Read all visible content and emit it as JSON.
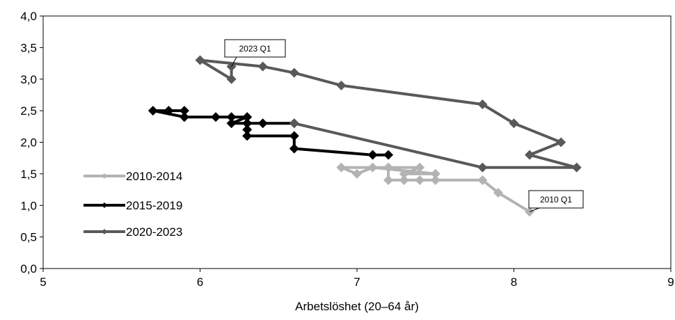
{
  "chart_data": {
    "type": "line",
    "title": "",
    "xlabel": "Arbetslöshet (20–64 år)",
    "ylabel": "",
    "xlim": [
      5,
      9
    ],
    "ylim": [
      0,
      4
    ],
    "x_ticks": [
      5,
      6,
      7,
      8,
      9
    ],
    "y_ticks": [
      "0,0",
      "0,5",
      "1,0",
      "1,5",
      "2,0",
      "2,5",
      "3,0",
      "3,5",
      "4,0"
    ],
    "grid": false,
    "legend_position": "left",
    "series": [
      {
        "name": "2010-2014",
        "color": "#b3b3b3",
        "points": [
          [
            8.1,
            0.9
          ],
          [
            7.9,
            1.2
          ],
          [
            7.8,
            1.4
          ],
          [
            7.5,
            1.4
          ],
          [
            7.4,
            1.4
          ],
          [
            7.3,
            1.4
          ],
          [
            7.2,
            1.4
          ],
          [
            7.2,
            1.6
          ],
          [
            7.4,
            1.6
          ],
          [
            7.3,
            1.5
          ],
          [
            7.5,
            1.5
          ],
          [
            7.1,
            1.6
          ],
          [
            7.0,
            1.5
          ],
          [
            6.9,
            1.6
          ],
          [
            7.2,
            1.6
          ]
        ]
      },
      {
        "name": "2015-2019",
        "color": "#000000",
        "points": [
          [
            7.2,
            1.8
          ],
          [
            7.1,
            1.8
          ],
          [
            6.6,
            1.9
          ],
          [
            6.6,
            2.1
          ],
          [
            6.3,
            2.1
          ],
          [
            6.3,
            2.2
          ],
          [
            6.3,
            2.3
          ],
          [
            6.4,
            2.3
          ],
          [
            6.2,
            2.3
          ],
          [
            6.3,
            2.4
          ],
          [
            6.1,
            2.4
          ],
          [
            5.9,
            2.4
          ],
          [
            5.9,
            2.5
          ],
          [
            5.8,
            2.5
          ],
          [
            5.7,
            2.5
          ],
          [
            5.9,
            2.4
          ],
          [
            6.2,
            2.4
          ],
          [
            6.3,
            2.4
          ],
          [
            6.3,
            2.3
          ],
          [
            6.6,
            2.3
          ]
        ]
      },
      {
        "name": "2020-2023",
        "color": "#595959",
        "points": [
          [
            6.6,
            2.3
          ],
          [
            7.8,
            1.6
          ],
          [
            8.4,
            1.6
          ],
          [
            8.1,
            1.8
          ],
          [
            8.3,
            2.0
          ],
          [
            8.0,
            2.3
          ],
          [
            7.8,
            2.6
          ],
          [
            6.9,
            2.9
          ],
          [
            6.6,
            3.1
          ],
          [
            6.4,
            3.2
          ],
          [
            6.0,
            3.3
          ],
          [
            6.2,
            3.0
          ],
          [
            6.2,
            3.2
          ]
        ]
      }
    ],
    "annotations": [
      {
        "text": "2023 Q1",
        "x": 6.2,
        "y": 3.2
      },
      {
        "text": "2010 Q1",
        "x": 8.1,
        "y": 0.9
      }
    ]
  }
}
